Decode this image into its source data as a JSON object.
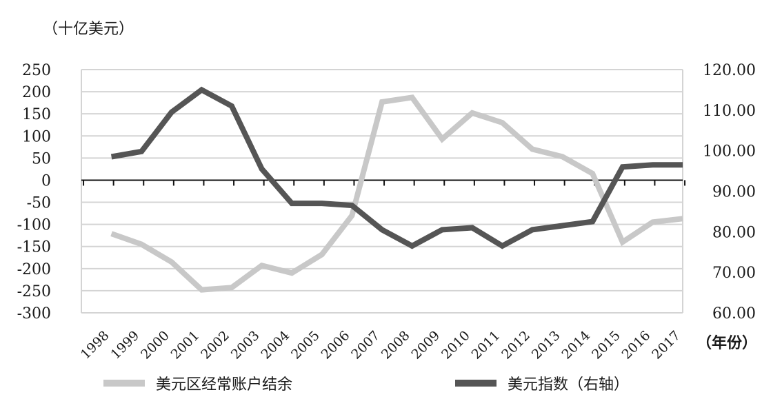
{
  "chart_data": {
    "type": "line",
    "y_unit_label": "（十亿美元）",
    "x_unit_label": "（年份）",
    "categories": [
      "1998",
      "1999",
      "2000",
      "2001",
      "2002",
      "2003",
      "2004",
      "2005",
      "2006",
      "2007",
      "2008",
      "2009",
      "2010",
      "2011",
      "2012",
      "2013",
      "2014",
      "2015",
      "2016",
      "2017"
    ],
    "left_axis": {
      "ylim": [
        -300,
        250
      ],
      "ticks": [
        "250",
        "200",
        "150",
        "100",
        "50",
        "0",
        "-50",
        "-100",
        "-150",
        "-200",
        "-250",
        "-300"
      ]
    },
    "right_axis": {
      "ylim": [
        60,
        120
      ],
      "ticks": [
        "120.00",
        "110.00",
        "100.00",
        "90.00",
        "80.00",
        "70.00",
        "60.00"
      ]
    },
    "grid": true,
    "series": [
      {
        "name": "美元区经常账户结余",
        "axis": "left",
        "color": "#c8c8c8",
        "values": [
          -121,
          -145,
          -185,
          -248,
          -243,
          -193,
          -210,
          -168,
          -80,
          177,
          187,
          93,
          152,
          130,
          70,
          53,
          15,
          -140,
          -95,
          -87
        ]
      },
      {
        "name": "美元指数（右轴）",
        "axis": "right",
        "color": "#555555",
        "values": [
          98.5,
          99.8,
          109.5,
          115,
          111,
          95.5,
          87,
          87,
          86.5,
          80.5,
          76.5,
          80.5,
          81,
          76.5,
          80.5,
          81.5,
          82.5,
          96,
          96.5,
          96.5
        ]
      }
    ]
  }
}
